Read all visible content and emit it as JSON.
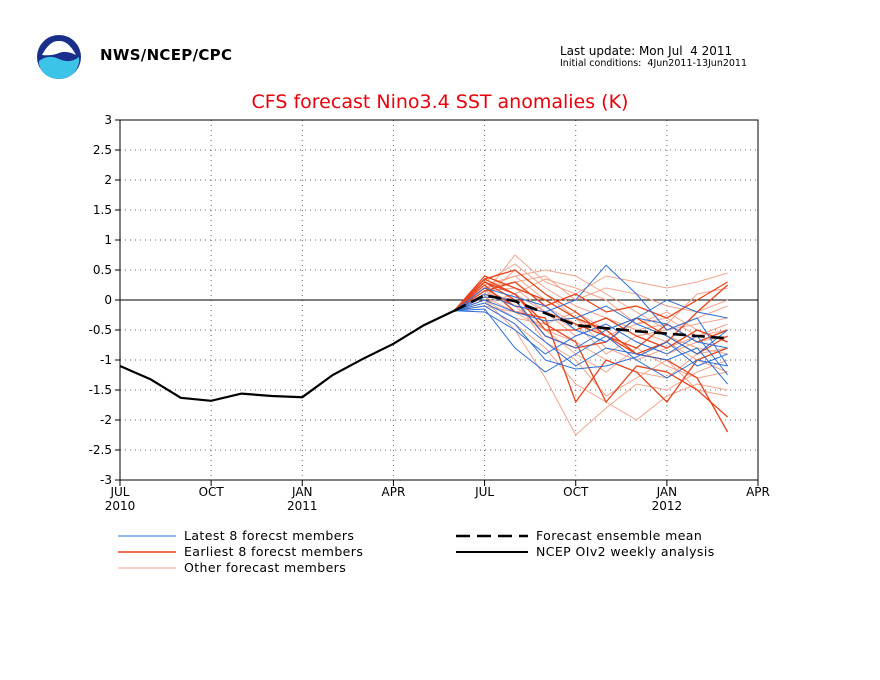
{
  "header": {
    "agency": "NWS/NCEP/CPC",
    "last_update": "Last update: Mon Jul  4 2011",
    "initial_conditions": "Initial conditions:  4Jun2011-13Jun2011"
  },
  "colors": {
    "latest": "#2d6fd6",
    "earliest": "#e8431a",
    "other": "#f0a58c",
    "mean": "#000000",
    "analysis": "#000000",
    "title": "#e8000b"
  },
  "chart_data": {
    "type": "line",
    "title": "CFS forecast Nino3.4 SST anomalies (K)",
    "ylim": [
      -3,
      3
    ],
    "yticks": [
      "3",
      "2.5",
      "2",
      "1.5",
      "1",
      "0.5",
      "0",
      "-0.5",
      "-1",
      "-1.5",
      "-2",
      "-2.5",
      "-3"
    ],
    "x_axis_range": [
      "Jul 2010",
      "Apr 2012"
    ],
    "xticks": [
      {
        "label": "JUL",
        "year": "2010"
      },
      {
        "label": "OCT",
        "year": ""
      },
      {
        "label": "JAN",
        "year": "2011"
      },
      {
        "label": "APR",
        "year": ""
      },
      {
        "label": "JUL",
        "year": ""
      },
      {
        "label": "OCT",
        "year": ""
      },
      {
        "label": "JAN",
        "year": "2012"
      },
      {
        "label": "APR",
        "year": ""
      }
    ],
    "grid": true,
    "zero_line": true,
    "legend": [
      {
        "label": "Latest 8 forecst members",
        "style": "latest"
      },
      {
        "label": "Earliest 8 forecst members",
        "style": "earliest"
      },
      {
        "label": "Other forecast members",
        "style": "other"
      },
      {
        "label": "Forecast ensemble mean",
        "style": "mean"
      },
      {
        "label": "NCEP OIv2 weekly analysis",
        "style": "analysis"
      }
    ],
    "forecast_months": [
      "Jun 2011",
      "Jul 2011",
      "Aug 2011",
      "Sep 2011",
      "Oct 2011",
      "Nov 2011",
      "Dec 2011",
      "Jan 2012",
      "Feb 2012",
      "Mar 2012"
    ],
    "analysis": {
      "name": "NCEP OIv2 weekly analysis",
      "x": [
        "Jul 2010",
        "Aug 2010",
        "Sep 2010",
        "Oct 2010",
        "Nov 2010",
        "Dec 2010",
        "Jan 2011",
        "Feb 2011",
        "Mar 2011",
        "Apr 2011",
        "May 2011",
        "Jun 2011"
      ],
      "y": [
        -1.1,
        -1.32,
        -1.63,
        -1.68,
        -1.56,
        -1.6,
        -1.62,
        -1.25,
        -0.98,
        -0.73,
        -0.42,
        -0.18
      ]
    },
    "ensemble_mean": {
      "name": "Forecast ensemble mean",
      "y": [
        -0.18,
        0.08,
        -0.02,
        -0.22,
        -0.42,
        -0.47,
        -0.52,
        -0.56,
        -0.6,
        -0.64
      ]
    },
    "latest_members": [
      [
        -0.18,
        -0.05,
        -0.3,
        -0.7,
        -1.1,
        -0.8,
        -0.9,
        -1.0,
        -0.8,
        -1.4
      ],
      [
        -0.18,
        0.1,
        -0.1,
        -0.2,
        0.0,
        0.58,
        0.1,
        -0.5,
        -0.3,
        -1.1
      ],
      [
        -0.18,
        -0.2,
        -0.5,
        -0.9,
        -0.6,
        -0.4,
        -0.7,
        -0.9,
        -0.6,
        -1.25
      ],
      [
        -0.18,
        0.0,
        -0.2,
        -0.35,
        -0.3,
        -0.1,
        -0.4,
        -0.6,
        -0.9,
        -0.5
      ],
      [
        -0.18,
        0.2,
        0.05,
        -0.1,
        -0.5,
        -0.7,
        -0.3,
        0.0,
        -0.2,
        -0.3
      ],
      [
        -0.18,
        -0.1,
        -0.4,
        -1.0,
        -1.15,
        -1.1,
        -0.95,
        -0.7,
        -1.1,
        -0.9
      ],
      [
        -0.18,
        0.05,
        0.0,
        -0.6,
        -0.8,
        -0.5,
        -0.3,
        -0.4,
        -0.7,
        -0.8
      ],
      [
        -0.18,
        -0.15,
        -0.8,
        -1.2,
        -0.9,
        -0.6,
        -1.0,
        -1.3,
        -1.0,
        -1.1
      ]
    ],
    "earliest_members": [
      [
        -0.18,
        0.4,
        0.2,
        0.0,
        -0.3,
        -0.5,
        -0.9,
        -1.0,
        -1.3,
        -2.2
      ],
      [
        -0.18,
        0.3,
        0.1,
        -0.4,
        -0.7,
        -1.7,
        -1.1,
        -1.2,
        -1.5,
        -1.95
      ],
      [
        -0.18,
        0.35,
        0.5,
        0.1,
        -0.2,
        -0.6,
        -0.9,
        -0.7,
        -0.2,
        0.25
      ],
      [
        -0.18,
        0.25,
        -0.2,
        -0.3,
        -1.7,
        -1.0,
        -1.2,
        -1.7,
        -1.0,
        -0.8
      ],
      [
        -0.18,
        0.15,
        0.3,
        -0.1,
        0.1,
        -0.2,
        -0.1,
        -0.3,
        0.0,
        0.3
      ],
      [
        -0.18,
        0.3,
        0.0,
        -0.6,
        -0.8,
        -0.7,
        -0.3,
        -0.6,
        -0.9,
        -0.6
      ],
      [
        -0.18,
        0.2,
        -0.1,
        -0.2,
        -0.4,
        -0.6,
        -0.8,
        -0.4,
        -0.7,
        -0.5
      ],
      [
        -0.18,
        0.35,
        0.1,
        -0.5,
        -0.5,
        -0.3,
        -0.6,
        -0.8,
        -0.5,
        -0.7
      ]
    ],
    "other_members": [
      [
        -0.18,
        0.1,
        0.75,
        0.3,
        0.1,
        0.4,
        0.3,
        0.2,
        0.3,
        0.45
      ],
      [
        -0.18,
        0.0,
        -0.5,
        -1.3,
        -2.25,
        -1.8,
        -1.4,
        -1.5,
        -1.2,
        -1.0
      ],
      [
        -0.18,
        0.2,
        0.4,
        0.5,
        0.4,
        0.1,
        -0.2,
        -0.5,
        -0.3,
        -0.1
      ],
      [
        -0.18,
        -0.1,
        -0.4,
        -0.8,
        -1.4,
        -1.7,
        -2.0,
        -1.6,
        -1.4,
        -1.5
      ],
      [
        -0.18,
        0.3,
        0.6,
        0.2,
        -0.1,
        -0.3,
        -0.5,
        -0.4,
        0.1,
        0.2
      ],
      [
        -0.18,
        0.05,
        -0.2,
        -0.5,
        -0.9,
        -1.2,
        -0.8,
        -1.1,
        -1.3,
        -1.2
      ],
      [
        -0.18,
        0.15,
        0.2,
        -0.2,
        -0.6,
        -0.4,
        -0.7,
        -0.9,
        -0.7,
        -0.6
      ],
      [
        -0.18,
        -0.05,
        0.1,
        0.35,
        0.2,
        0.0,
        -0.4,
        -0.2,
        -0.5,
        -0.7
      ],
      [
        -0.18,
        0.25,
        0.4,
        0.0,
        -0.3,
        -0.8,
        -1.0,
        -0.8,
        -0.6,
        -0.4
      ],
      [
        -0.18,
        0.0,
        -0.3,
        -0.4,
        -0.2,
        -0.5,
        -0.3,
        -0.6,
        -0.8,
        -0.9
      ],
      [
        -0.18,
        0.1,
        0.0,
        -0.7,
        -1.0,
        -1.6,
        -1.3,
        -1.0,
        -1.5,
        -1.6
      ],
      [
        -0.18,
        0.2,
        0.3,
        0.4,
        0.0,
        0.2,
        0.1,
        -0.1,
        -0.2,
        0.0
      ],
      [
        -0.18,
        -0.1,
        -0.2,
        -0.1,
        -0.4,
        -0.9,
        -0.6,
        -0.5,
        -0.4,
        -0.3
      ],
      [
        -0.18,
        0.3,
        0.1,
        -0.2,
        -0.5,
        -0.3,
        -0.5,
        -0.7,
        -1.0,
        -1.2
      ],
      [
        -0.18,
        0.05,
        0.5,
        0.1,
        -0.3,
        -0.6,
        -0.4,
        -0.3,
        -0.6,
        -0.5
      ],
      [
        -0.18,
        0.15,
        -0.1,
        -0.5,
        -0.7,
        -1.0,
        -1.2,
        -1.3,
        -0.9,
        -0.8
      ]
    ]
  }
}
